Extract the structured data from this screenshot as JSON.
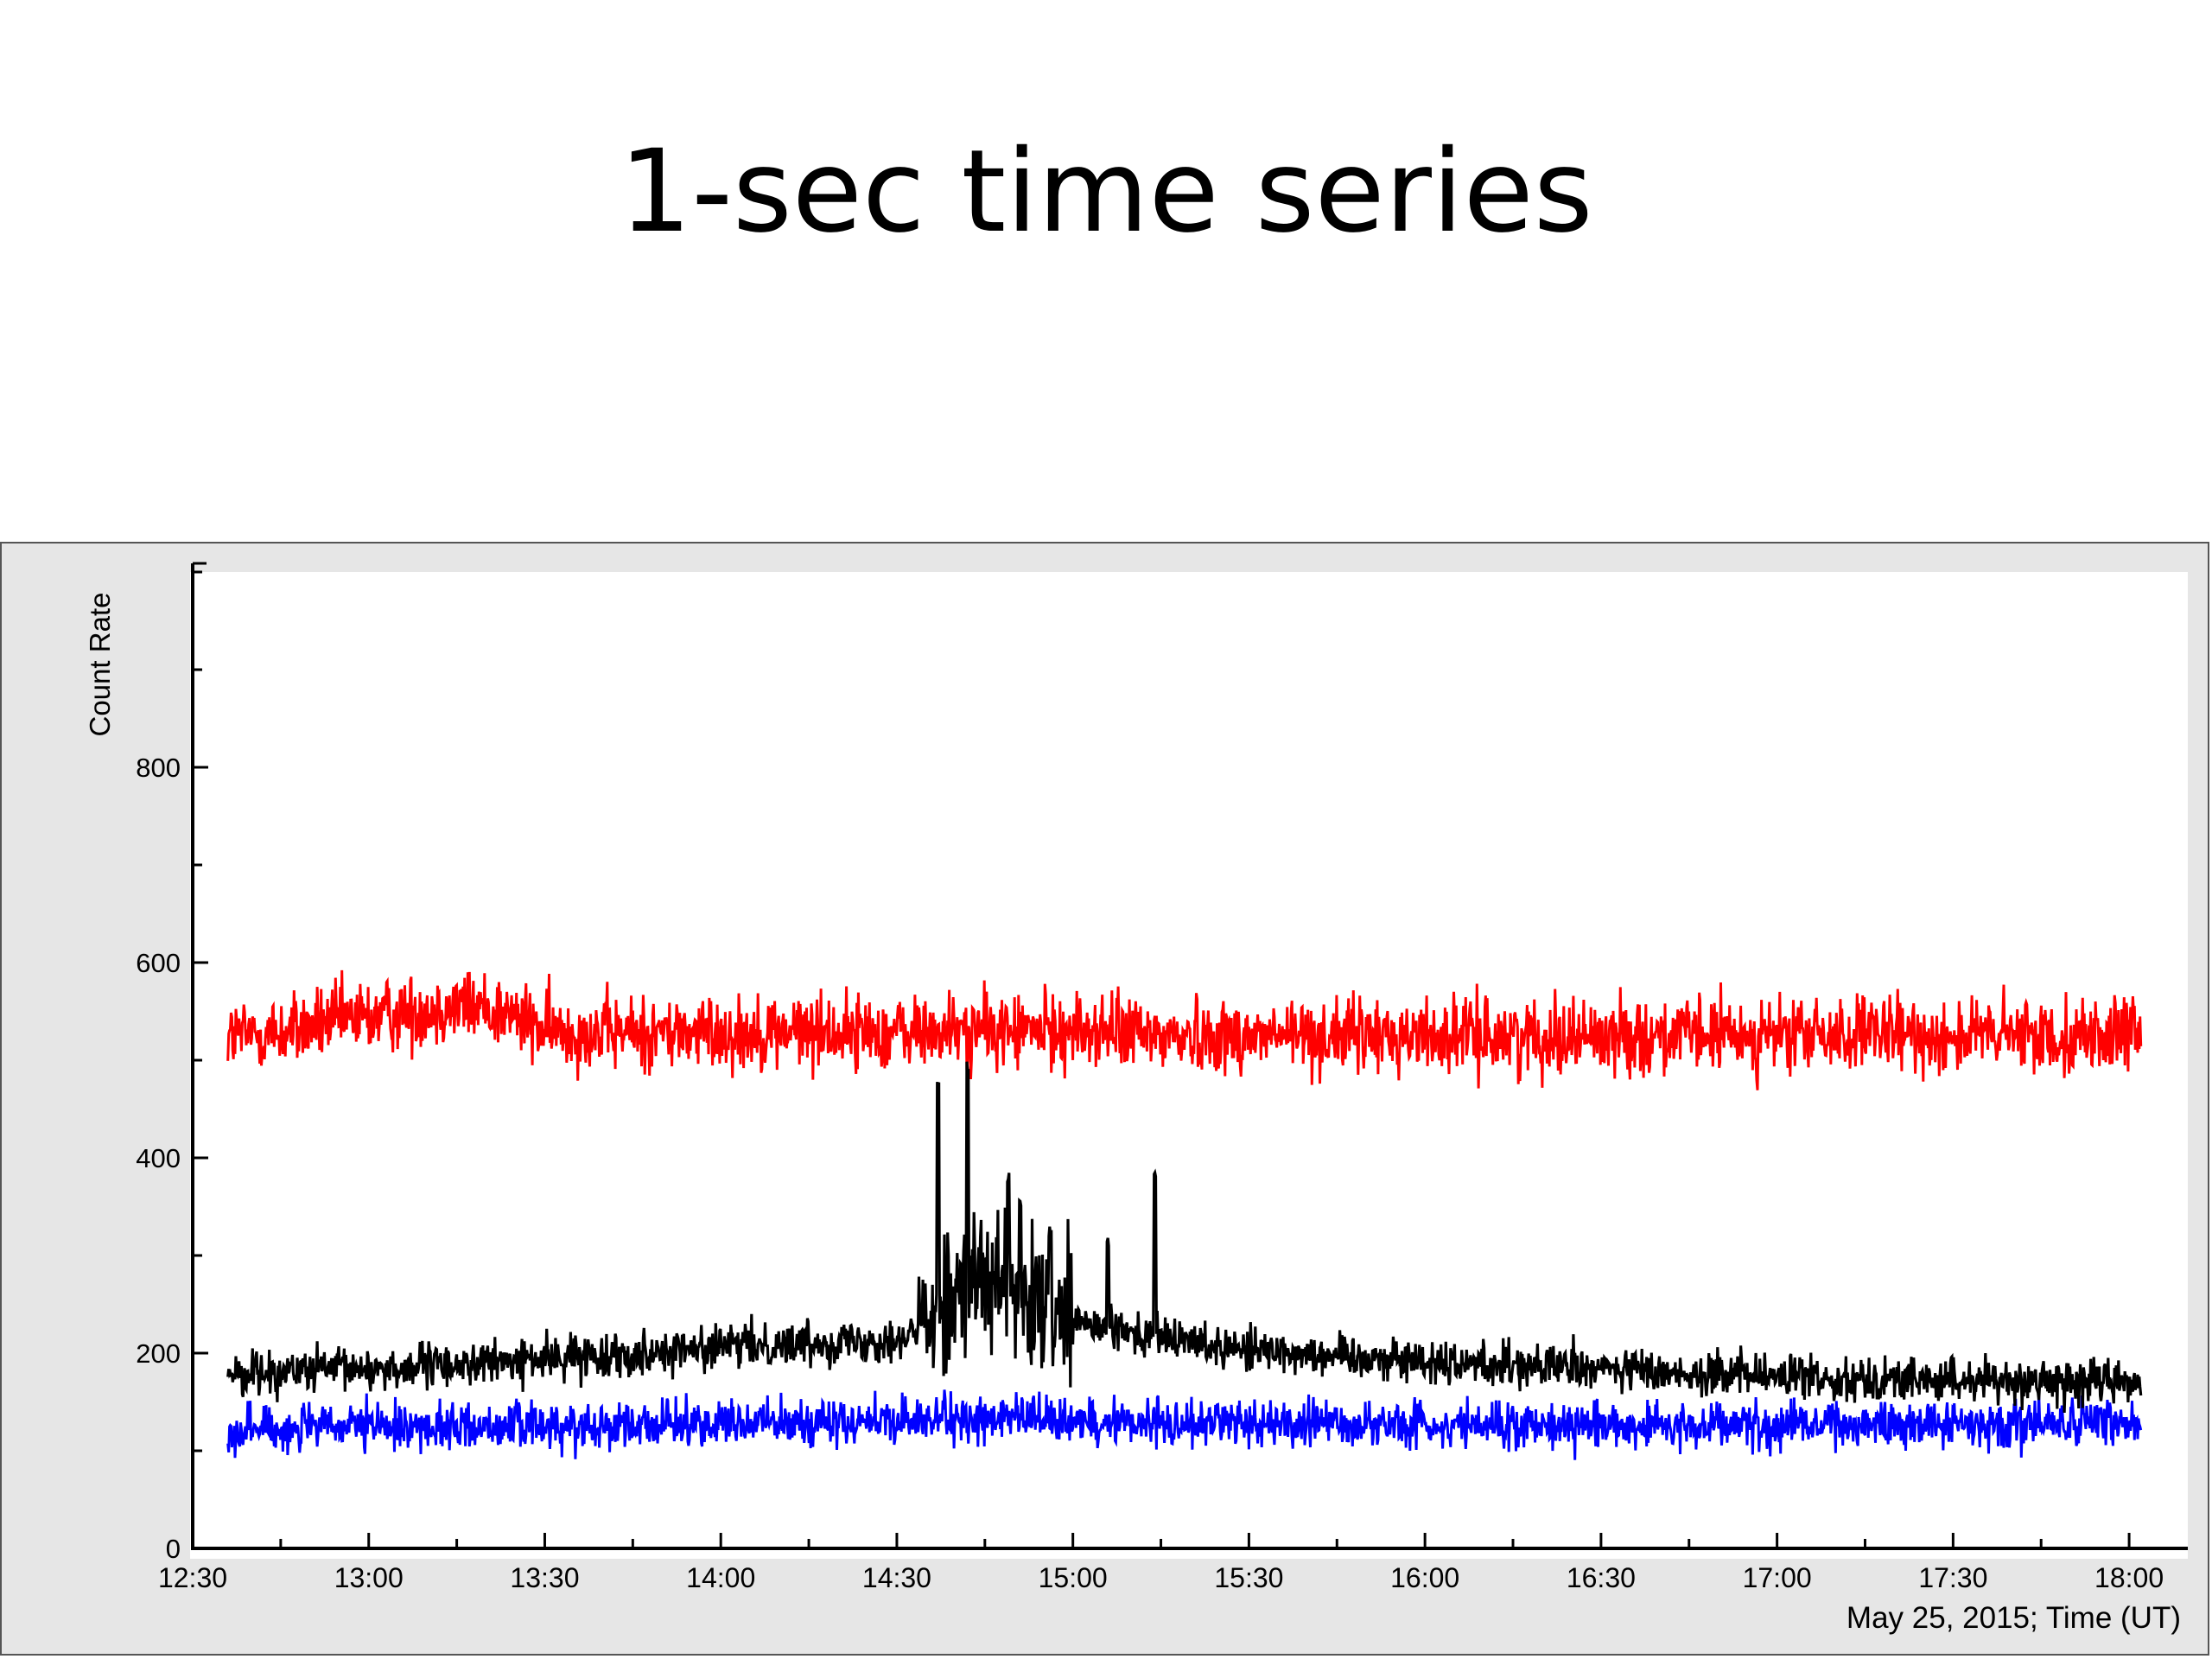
{
  "slide": {
    "title": "1-sec time series"
  },
  "chart_data": {
    "type": "line",
    "title": "1-sec time series",
    "xlabel": "May 25, 2015; Time (UT)",
    "ylabel": "Count Rate",
    "x_unit": "time (UT, HH:MM)",
    "xlim": [
      "12:30",
      "18:10"
    ],
    "ylim": [
      0,
      1000
    ],
    "x_ticks": [
      "12:30",
      "13:00",
      "13:30",
      "14:00",
      "14:30",
      "15:00",
      "15:30",
      "16:00",
      "16:30",
      "17:00",
      "17:30",
      "18:00"
    ],
    "y_ticks": [
      0,
      200,
      400,
      600,
      800
    ],
    "grid": false,
    "legend": "none",
    "series": [
      {
        "color": "#ff0000",
        "x": [
          "12:36",
          "12:45",
          "12:55",
          "13:05",
          "13:15",
          "13:22",
          "13:30",
          "13:45",
          "14:00",
          "14:15",
          "14:30",
          "14:45",
          "14:55",
          "15:05",
          "15:15",
          "15:30",
          "15:45",
          "16:00",
          "16:15",
          "16:30",
          "16:45",
          "17:00",
          "17:15",
          "17:30",
          "17:45",
          "18:02"
        ],
        "values": [
          525,
          528,
          540,
          548,
          556,
          552,
          530,
          528,
          528,
          530,
          528,
          530,
          530,
          530,
          525,
          525,
          525,
          525,
          525,
          525,
          525,
          525,
          525,
          525,
          525,
          525
        ],
        "range": [
          460,
          630
        ]
      },
      {
        "color": "#000000",
        "x": [
          "12:36",
          "12:50",
          "13:05",
          "13:20",
          "13:35",
          "13:50",
          "14:05",
          "14:20",
          "14:32",
          "14:38",
          "14:43",
          "14:48",
          "14:53",
          "14:58",
          "15:05",
          "15:15",
          "15:30",
          "15:45",
          "16:00",
          "16:15",
          "16:30",
          "16:45",
          "17:00",
          "17:15",
          "17:30",
          "17:45",
          "18:02"
        ],
        "values": [
          180,
          182,
          185,
          190,
          196,
          202,
          208,
          212,
          215,
          255,
          280,
          260,
          245,
          235,
          225,
          215,
          205,
          198,
          192,
          188,
          184,
          180,
          176,
          174,
          172,
          171,
          170
        ],
        "peaks": [
          {
            "x": "14:37",
            "value": 480
          },
          {
            "x": "14:42",
            "value": 500
          },
          {
            "x": "14:49",
            "value": 390
          },
          {
            "x": "14:51",
            "value": 370
          },
          {
            "x": "14:56",
            "value": 340
          },
          {
            "x": "15:06",
            "value": 320
          },
          {
            "x": "15:14",
            "value": 395
          }
        ]
      },
      {
        "color": "#0000ff",
        "x": [
          "12:36",
          "13:00",
          "13:30",
          "14:00",
          "14:30",
          "14:45",
          "15:00",
          "15:30",
          "16:00",
          "16:30",
          "17:00",
          "17:30",
          "18:02"
        ],
        "values": [
          122,
          124,
          126,
          128,
          130,
          133,
          131,
          128,
          127,
          127,
          127,
          128,
          128
        ],
        "range": [
          85,
          205
        ]
      }
    ]
  }
}
